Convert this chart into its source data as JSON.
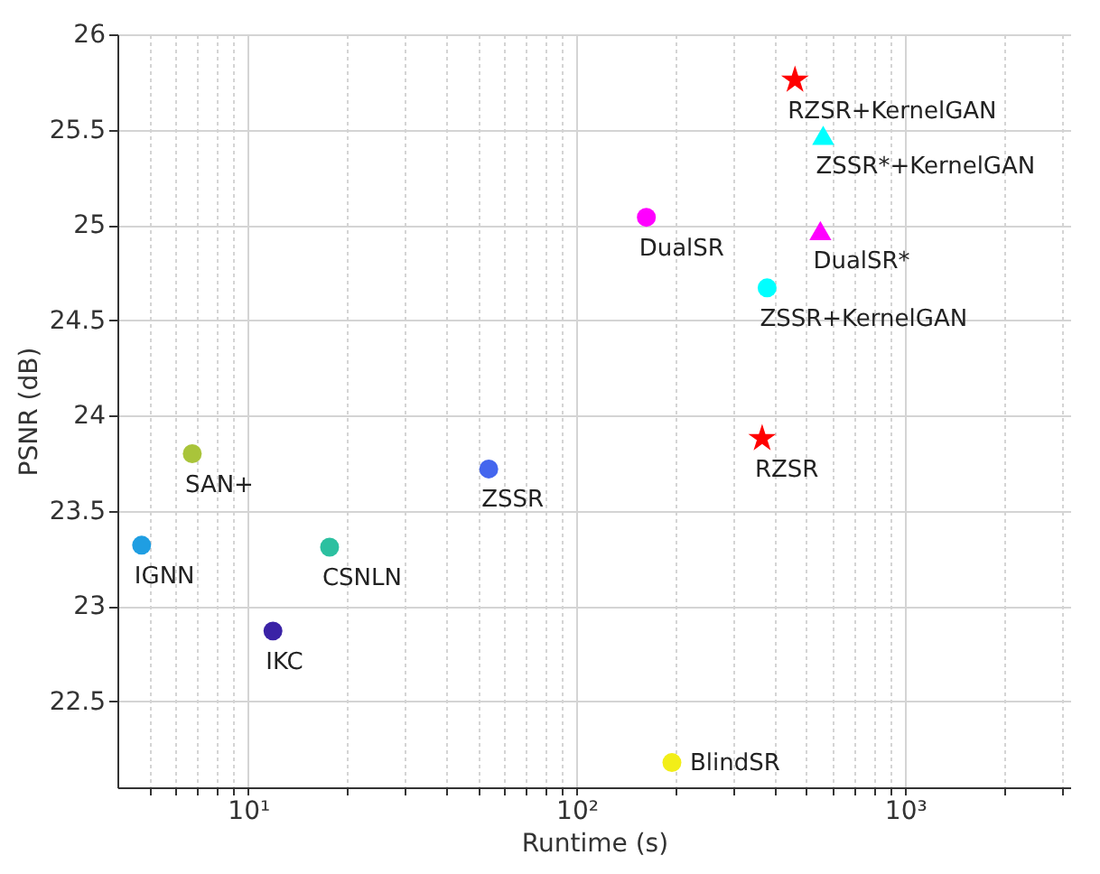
{
  "chart_data": {
    "type": "scatter",
    "xlabel": "Runtime (s)",
    "ylabel": "PSNR (dB)",
    "log": "x",
    "grid": true,
    "legend": false,
    "xlim": [
      4,
      3200
    ],
    "ylim": [
      22.05,
      26
    ],
    "xticks": [
      {
        "value": 5,
        "label": null
      },
      {
        "value": 6,
        "label": null
      },
      {
        "value": 7,
        "label": null
      },
      {
        "value": 8,
        "label": null
      },
      {
        "value": 9,
        "label": null
      },
      {
        "value": 10,
        "label": "10¹"
      },
      {
        "value": 20,
        "label": null
      },
      {
        "value": 30,
        "label": null
      },
      {
        "value": 40,
        "label": null
      },
      {
        "value": 50,
        "label": null
      },
      {
        "value": 60,
        "label": null
      },
      {
        "value": 70,
        "label": null
      },
      {
        "value": 80,
        "label": null
      },
      {
        "value": 90,
        "label": null
      },
      {
        "value": 100,
        "label": "10²"
      },
      {
        "value": 200,
        "label": null
      },
      {
        "value": 300,
        "label": null
      },
      {
        "value": 400,
        "label": null
      },
      {
        "value": 500,
        "label": null
      },
      {
        "value": 600,
        "label": null
      },
      {
        "value": 700,
        "label": null
      },
      {
        "value": 800,
        "label": null
      },
      {
        "value": 900,
        "label": null
      },
      {
        "value": 1000,
        "label": "10³"
      },
      {
        "value": 2000,
        "label": null
      },
      {
        "value": 3000,
        "label": null
      }
    ],
    "yticks": [
      22.5,
      23,
      23.5,
      24,
      24.5,
      25,
      25.5,
      26
    ],
    "series": [
      {
        "name": "RZSR+KernelGAN",
        "color": "#ff0000",
        "marker": "star",
        "x": [
          462
        ],
        "values": [
          25.76
        ]
      },
      {
        "name": "ZSSR*+KernelGAN",
        "color": "#00ffff",
        "marker": "triangle",
        "x": [
          563
        ],
        "values": [
          25.47
        ]
      },
      {
        "name": "DualSR",
        "color": "#ff00ff",
        "marker": "circle",
        "x": [
          163
        ],
        "values": [
          25.04
        ]
      },
      {
        "name": "DualSR*",
        "color": "#ff00ff",
        "marker": "triangle",
        "x": [
          552
        ],
        "values": [
          24.97
        ]
      },
      {
        "name": "ZSSR+KernelGAN",
        "color": "#00ffff",
        "marker": "circle",
        "x": [
          380
        ],
        "values": [
          24.67
        ]
      },
      {
        "name": "RZSR",
        "color": "#ff0000",
        "marker": "star",
        "x": [
          367
        ],
        "values": [
          23.88
        ]
      },
      {
        "name": "SAN+",
        "color": "#a9c43a",
        "marker": "circle",
        "x": [
          6.76
        ],
        "values": [
          23.8
        ]
      },
      {
        "name": "ZSSR",
        "color": "#4466ee",
        "marker": "circle",
        "x": [
          54
        ],
        "values": [
          23.72
        ]
      },
      {
        "name": "IGNN",
        "color": "#1f9ee2",
        "marker": "circle",
        "x": [
          4.74
        ],
        "values": [
          23.32
        ]
      },
      {
        "name": "CSNLN",
        "color": "#2cc0a0",
        "marker": "circle",
        "x": [
          17.7
        ],
        "values": [
          23.31
        ]
      },
      {
        "name": "IKC",
        "color": "#3a22a6",
        "marker": "circle",
        "x": [
          11.9
        ],
        "values": [
          22.87
        ]
      },
      {
        "name": "BlindSR",
        "color": "#f2ee18",
        "marker": "circle",
        "x": [
          195
        ],
        "values": [
          22.18
        ]
      }
    ]
  }
}
